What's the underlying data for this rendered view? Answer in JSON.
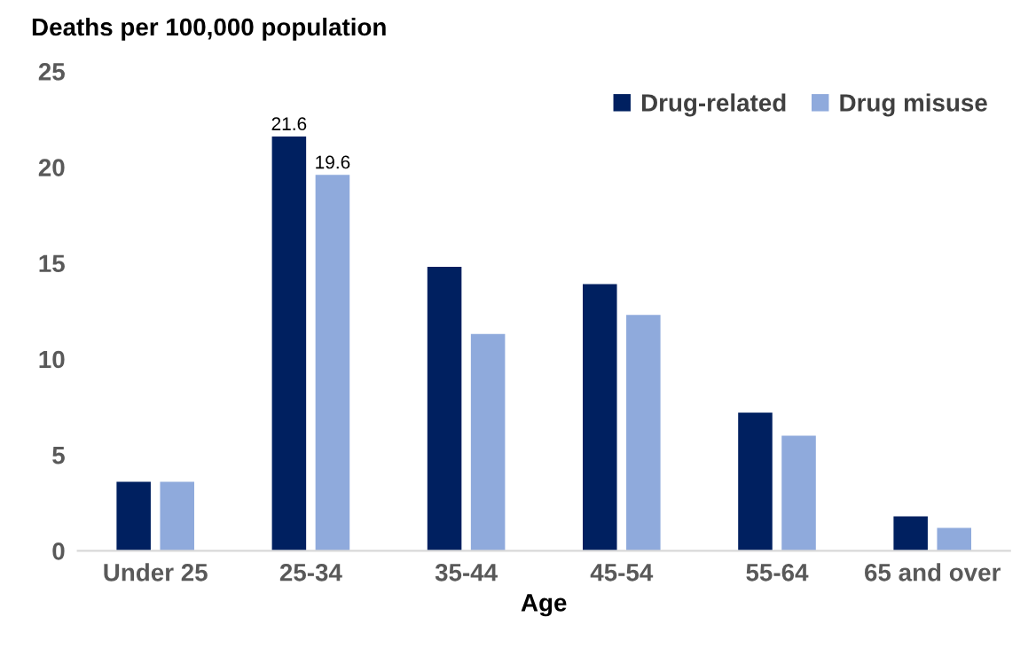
{
  "chart_data": {
    "type": "bar",
    "ylabel": "Deaths per 100,000 population",
    "xlabel": "Age",
    "categories": [
      "Under 25",
      "25-34",
      "35-44",
      "45-54",
      "55-64",
      "65 and over"
    ],
    "series": [
      {
        "name": "Drug-related",
        "color": "#002060",
        "values": [
          3.6,
          21.6,
          14.8,
          13.9,
          7.2,
          1.8
        ],
        "value_labels": [
          null,
          "21.6",
          null,
          null,
          null,
          null
        ]
      },
      {
        "name": "Drug misuse",
        "color": "#8faadc",
        "values": [
          3.6,
          19.6,
          11.3,
          12.3,
          6.0,
          1.2
        ],
        "value_labels": [
          null,
          "19.6",
          null,
          null,
          null,
          null
        ]
      }
    ],
    "ylim": [
      0,
      25
    ],
    "yticks": [
      0,
      5,
      10,
      15,
      20,
      25
    ],
    "grid": false,
    "legend": "top right"
  }
}
